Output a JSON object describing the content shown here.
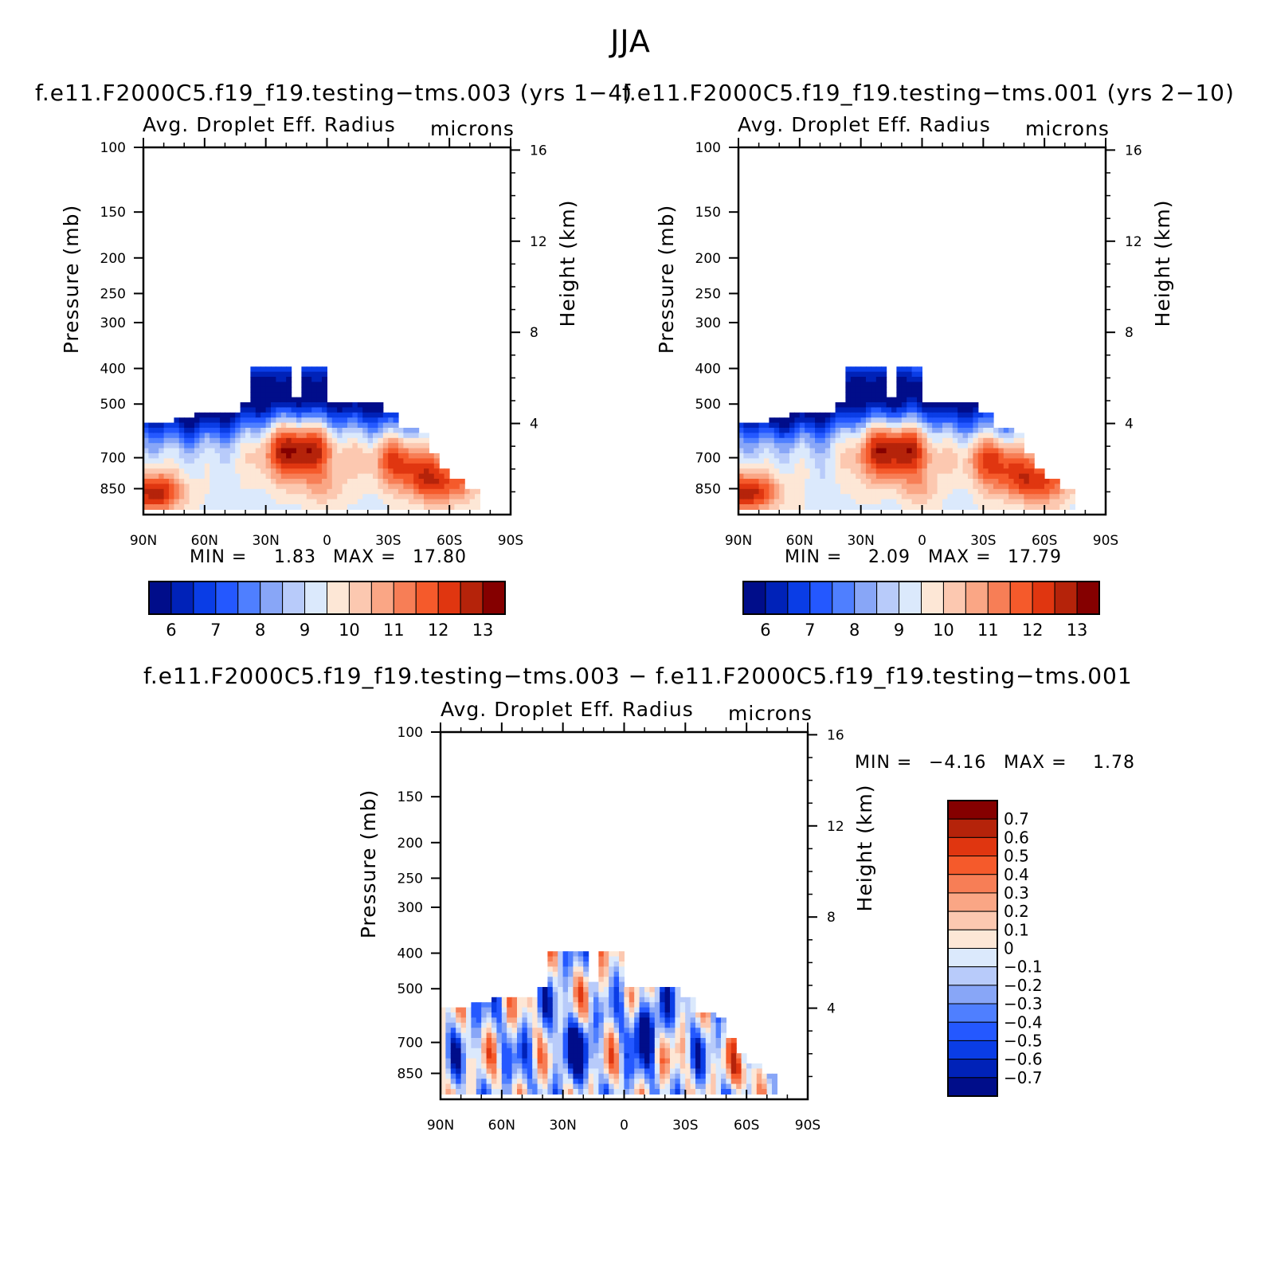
{
  "figure": {
    "title": "JJA",
    "panels": [
      {
        "case_title": "f.e11.F2000C5.f19_f19.testing−tms.003 (yrs 1−4)",
        "left_title": "Avg. Droplet Eff. Radius",
        "right_title": "microns",
        "min_label": "MIN =",
        "min_value": "1.83",
        "max_label": "MAX =",
        "max_value": "17.80"
      },
      {
        "case_title": "f.e11.F2000C5.f19_f19.testing−tms.001 (yrs 2−10)",
        "left_title": "Avg. Droplet Eff. Radius",
        "right_title": "microns",
        "min_label": "MIN =",
        "min_value": "2.09",
        "max_label": "MAX =",
        "max_value": "17.79"
      },
      {
        "case_title": "f.e11.F2000C5.f19_f19.testing−tms.003 − f.e11.F2000C5.f19_f19.testing−tms.001",
        "left_title": "Avg. Droplet Eff. Radius",
        "right_title": "microns",
        "min_label": "MIN =",
        "min_value": "−4.16",
        "max_label": "MAX =",
        "max_value": "1.78"
      }
    ]
  },
  "chart_data": [
    {
      "type": "heatmap",
      "title": "Avg. Droplet Eff. Radius",
      "units": "microns",
      "xlabel": "",
      "ylabel": "Pressure (mb)",
      "y2label": "Height (km)",
      "x_ticks": [
        "90N",
        "60N",
        "30N",
        "0",
        "30S",
        "60S",
        "90S"
      ],
      "x_tick_values": [
        90,
        60,
        30,
        0,
        -30,
        -60,
        -90
      ],
      "y_ticks": [
        "100",
        "150",
        "200",
        "250",
        "300",
        "400",
        "500",
        "700",
        "850"
      ],
      "y_tick_values": [
        100,
        150,
        200,
        250,
        300,
        400,
        500,
        700,
        850
      ],
      "y2_ticks": [
        "16",
        "12",
        "8",
        "4"
      ],
      "y2_tick_values": [
        16,
        12,
        8,
        4
      ],
      "ylim": [
        100,
        1000
      ],
      "y_scale": "log",
      "colorbar_labels": [
        "6",
        "7",
        "8",
        "9",
        "10",
        "11",
        "12",
        "13"
      ],
      "colorbar_levels": [
        5.5,
        6,
        6.5,
        7,
        7.5,
        8,
        8.5,
        9,
        9.5,
        10,
        10.5,
        11,
        11.5,
        12,
        12.5,
        13,
        13.5
      ],
      "colorbar_colors": [
        "#000d8a",
        "#0022b8",
        "#0a3de6",
        "#2458ff",
        "#4f7fff",
        "#88a6f7",
        "#b8cbfa",
        "#dbe9fc",
        "#fde7d6",
        "#fcc8b0",
        "#faa685",
        "#f77e56",
        "#f55a2b",
        "#e03610",
        "#b5230a",
        "#850000"
      ],
      "colorbar_orientation": "horizontal",
      "min": 1.83,
      "max": 17.8
    },
    {
      "type": "heatmap",
      "title": "Avg. Droplet Eff. Radius",
      "units": "microns",
      "xlabel": "",
      "ylabel": "Pressure (mb)",
      "y2label": "Height (km)",
      "x_ticks": [
        "90N",
        "60N",
        "30N",
        "0",
        "30S",
        "60S",
        "90S"
      ],
      "x_tick_values": [
        90,
        60,
        30,
        0,
        -30,
        -60,
        -90
      ],
      "y_ticks": [
        "100",
        "150",
        "200",
        "250",
        "300",
        "400",
        "500",
        "700",
        "850"
      ],
      "y_tick_values": [
        100,
        150,
        200,
        250,
        300,
        400,
        500,
        700,
        850
      ],
      "y2_ticks": [
        "16",
        "12",
        "8",
        "4"
      ],
      "y2_tick_values": [
        16,
        12,
        8,
        4
      ],
      "ylim": [
        100,
        1000
      ],
      "y_scale": "log",
      "colorbar_labels": [
        "6",
        "7",
        "8",
        "9",
        "10",
        "11",
        "12",
        "13"
      ],
      "colorbar_levels": [
        5.5,
        6,
        6.5,
        7,
        7.5,
        8,
        8.5,
        9,
        9.5,
        10,
        10.5,
        11,
        11.5,
        12,
        12.5,
        13,
        13.5
      ],
      "colorbar_colors": [
        "#000d8a",
        "#0022b8",
        "#0a3de6",
        "#2458ff",
        "#4f7fff",
        "#88a6f7",
        "#b8cbfa",
        "#dbe9fc",
        "#fde7d6",
        "#fcc8b0",
        "#faa685",
        "#f77e56",
        "#f55a2b",
        "#e03610",
        "#b5230a",
        "#850000"
      ],
      "colorbar_orientation": "horizontal",
      "min": 2.09,
      "max": 17.79
    },
    {
      "type": "heatmap",
      "title": "Avg. Droplet Eff. Radius",
      "units": "microns",
      "xlabel": "",
      "ylabel": "Pressure (mb)",
      "y2label": "Height (km)",
      "x_ticks": [
        "90N",
        "60N",
        "30N",
        "0",
        "30S",
        "60S",
        "90S"
      ],
      "x_tick_values": [
        90,
        60,
        30,
        0,
        -30,
        -60,
        -90
      ],
      "y_ticks": [
        "100",
        "150",
        "200",
        "250",
        "300",
        "400",
        "500",
        "700",
        "850"
      ],
      "y_tick_values": [
        100,
        150,
        200,
        250,
        300,
        400,
        500,
        700,
        850
      ],
      "y2_ticks": [
        "16",
        "12",
        "8",
        "4"
      ],
      "y2_tick_values": [
        16,
        12,
        8,
        4
      ],
      "ylim": [
        100,
        1000
      ],
      "y_scale": "log",
      "colorbar_labels": [
        "0.7",
        "0.6",
        "0.5",
        "0.4",
        "0.3",
        "0.2",
        "0.1",
        "0",
        "−0.1",
        "−0.2",
        "−0.3",
        "−0.4",
        "−0.5",
        "−0.6",
        "−0.7"
      ],
      "colorbar_levels": [
        0.7,
        0.6,
        0.5,
        0.4,
        0.3,
        0.2,
        0.1,
        0,
        -0.1,
        -0.2,
        -0.3,
        -0.4,
        -0.5,
        -0.6,
        -0.7
      ],
      "colorbar_colors": [
        "#850000",
        "#b5230a",
        "#e03610",
        "#f55a2b",
        "#f77e56",
        "#faa685",
        "#fcc8b0",
        "#fde7d6",
        "#dbe9fc",
        "#b8cbfa",
        "#88a6f7",
        "#4f7fff",
        "#2458ff",
        "#0a3de6",
        "#0022b8",
        "#000d8a"
      ],
      "colorbar_orientation": "vertical",
      "min": -4.16,
      "max": 1.78
    }
  ]
}
